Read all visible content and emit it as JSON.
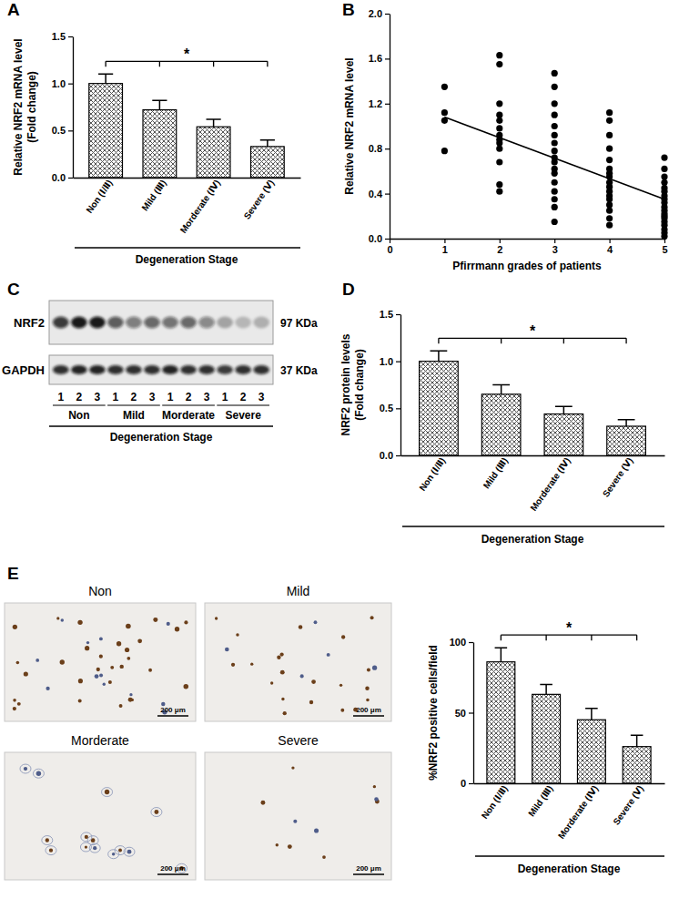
{
  "chart_data": [
    {
      "type": "bar",
      "panel": "A",
      "categories": [
        "Non (Ⅰ/Ⅱ)",
        "Mild (Ⅲ)",
        "Morderate (Ⅳ)",
        "Severe (Ⅴ)"
      ],
      "values": [
        1.0,
        0.72,
        0.54,
        0.33
      ],
      "errors": [
        0.1,
        0.1,
        0.08,
        0.07
      ],
      "color": "#555555",
      "xlabel": "Degeneration Stage",
      "ylabel": "Relative NRF2 mRNA level (Fold change)",
      "ylim": [
        0,
        1.5
      ],
      "yticks": [
        {
          "value": 0,
          "label": "0.0"
        },
        {
          "value": 0.5,
          "label": "0.5"
        },
        {
          "value": 1,
          "label": "1.0"
        },
        {
          "value": 1.5,
          "label": "1.5"
        }
      ],
      "annotations": [
        "*"
      ]
    },
    {
      "type": "scatter",
      "panel": "B",
      "xlabel": "Pfirrmann grades of patients",
      "ylabel": "Relative NRF2 mRNA level",
      "xlim": [
        0,
        5
      ],
      "xticks": [
        0,
        1,
        2,
        3,
        4,
        5
      ],
      "ylim": [
        0,
        2.0
      ],
      "yticks": [
        {
          "value": 0,
          "label": "0.0"
        },
        {
          "value": 0.4,
          "label": "0.4"
        },
        {
          "value": 0.8,
          "label": "0.8"
        },
        {
          "value": 1.2,
          "label": "1.2"
        },
        {
          "value": 1.6,
          "label": "1.6"
        },
        {
          "value": 2.0,
          "label": "2.0"
        }
      ],
      "series": [
        {
          "type": "scatter",
          "marker": "circle",
          "color": "#000000",
          "x": [
            1,
            1,
            1,
            1,
            2,
            2,
            2,
            2,
            2,
            2,
            2,
            2,
            2,
            2,
            2,
            2,
            2,
            3,
            3,
            3,
            3,
            3,
            3,
            3,
            3,
            3,
            3,
            3,
            3,
            3,
            3,
            3,
            3,
            3,
            4,
            4,
            4,
            4,
            4,
            4,
            4,
            4,
            4,
            4,
            4,
            4,
            4,
            4,
            4,
            4,
            4,
            5,
            5,
            5,
            5,
            5,
            5,
            5,
            5,
            5,
            5,
            5,
            5,
            5,
            5,
            5,
            5,
            5,
            5,
            5
          ],
          "values": [
            1.35,
            1.12,
            1.05,
            0.78,
            1.63,
            1.55,
            1.2,
            1.1,
            1.05,
            0.98,
            0.92,
            0.88,
            0.85,
            0.8,
            0.68,
            0.48,
            0.42,
            1.47,
            1.35,
            1.2,
            1.1,
            1.0,
            0.92,
            0.85,
            0.78,
            0.72,
            0.68,
            0.62,
            0.58,
            0.5,
            0.42,
            0.35,
            0.28,
            0.15,
            1.12,
            1.05,
            0.92,
            0.8,
            0.7,
            0.62,
            0.58,
            0.55,
            0.5,
            0.46,
            0.42,
            0.38,
            0.35,
            0.3,
            0.25,
            0.18,
            0.12,
            0.72,
            0.62,
            0.55,
            0.5,
            0.45,
            0.42,
            0.38,
            0.35,
            0.32,
            0.28,
            0.25,
            0.22,
            0.2,
            0.18,
            0.15,
            0.12,
            0.08,
            0.05,
            0.02
          ]
        },
        {
          "type": "line",
          "line_style": "solid",
          "color": "#000000",
          "x": [
            1,
            5
          ],
          "values": [
            1.08,
            0.35
          ]
        }
      ]
    },
    {
      "type": "blot",
      "panel": "C",
      "categories": [
        "1",
        "2",
        "3",
        "1",
        "2",
        "3",
        "1",
        "2",
        "3",
        "1",
        "2",
        "3"
      ],
      "groups": [
        "Non",
        "Mild",
        "Morderate",
        "Severe"
      ],
      "xlabel": "Degeneration Stage",
      "annotations": [
        "97 KDa",
        "37 KDa"
      ],
      "series": [
        {
          "name": "NRF2",
          "color": "#111111",
          "values": [
            0.8,
            0.95,
            0.95,
            0.65,
            0.5,
            0.6,
            0.55,
            0.6,
            0.45,
            0.3,
            0.22,
            0.25
          ]
        },
        {
          "name": "GAPDH",
          "color": "#111111",
          "values": [
            0.85,
            0.9,
            0.9,
            0.85,
            0.85,
            0.85,
            0.9,
            0.85,
            0.85,
            0.8,
            0.85,
            0.85
          ]
        }
      ]
    },
    {
      "type": "bar",
      "panel": "D",
      "categories": [
        "Non (Ⅰ/Ⅱ)",
        "Mild (Ⅲ)",
        "Morderate (Ⅳ)",
        "Severe (Ⅴ)"
      ],
      "values": [
        1.0,
        0.65,
        0.44,
        0.31
      ],
      "errors": [
        0.11,
        0.1,
        0.08,
        0.07
      ],
      "color": "#555555",
      "xlabel": "Degeneration Stage",
      "ylabel": "NRF2 protein levels (Fold change)",
      "ylim": [
        0,
        1.5
      ],
      "yticks": [
        {
          "value": 0,
          "label": "0.0"
        },
        {
          "value": 0.5,
          "label": "0.5"
        },
        {
          "value": 1,
          "label": "1.0"
        },
        {
          "value": 1.5,
          "label": "1.5"
        }
      ],
      "annotations": [
        "*"
      ]
    },
    {
      "type": "image",
      "panel": "E",
      "title": "Non",
      "annotations": [
        "200 μm"
      ]
    },
    {
      "type": "image",
      "title": "Mild",
      "annotations": [
        "200 μm"
      ]
    },
    {
      "type": "image",
      "title": "Morderate",
      "annotations": [
        "200 μm"
      ]
    },
    {
      "type": "image",
      "title": "Severe",
      "annotations": [
        "200 μm"
      ]
    },
    {
      "type": "bar",
      "categories": [
        "Non (Ⅰ/Ⅱ)",
        "Mild (Ⅲ)",
        "Morderate (Ⅳ)",
        "Severe (Ⅴ)"
      ],
      "values": [
        86,
        63,
        45,
        26
      ],
      "errors": [
        10,
        7,
        8,
        8
      ],
      "color": "#555555",
      "xlabel": "Degeneration Stage",
      "ylabel": "%NRF2 positive cells/field",
      "ylim": [
        0,
        100
      ],
      "yticks": [
        0,
        50,
        100
      ],
      "annotations": [
        "*"
      ]
    }
  ]
}
